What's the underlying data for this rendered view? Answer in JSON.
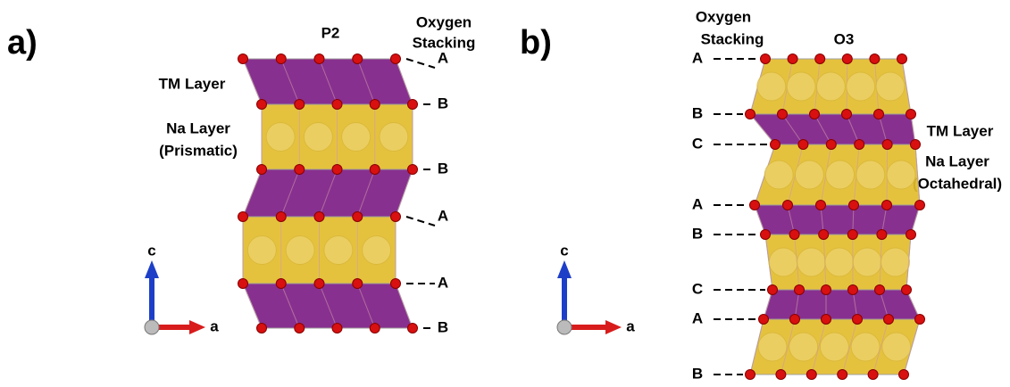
{
  "panels": [
    {
      "label": "a)",
      "structure": "P2",
      "stacking_header": [
        "Oxygen",
        "Stacking"
      ],
      "layer_labels": [
        "TM Layer",
        "Na Layer",
        "(Prismatic)"
      ],
      "stacking": [
        "A",
        "B",
        "B",
        "A",
        "A",
        "B"
      ],
      "axes": [
        "c",
        "a"
      ]
    },
    {
      "label": "b)",
      "structure": "O3",
      "stacking_header": [
        "Oxygen",
        "Stacking"
      ],
      "layer_labels": [
        "TM Layer",
        "Na Layer",
        "(Octahedral)"
      ],
      "stacking": [
        "A",
        "B",
        "C",
        "A",
        "B",
        "C",
        "A",
        "B"
      ],
      "axes": [
        "c",
        "a"
      ]
    }
  ]
}
